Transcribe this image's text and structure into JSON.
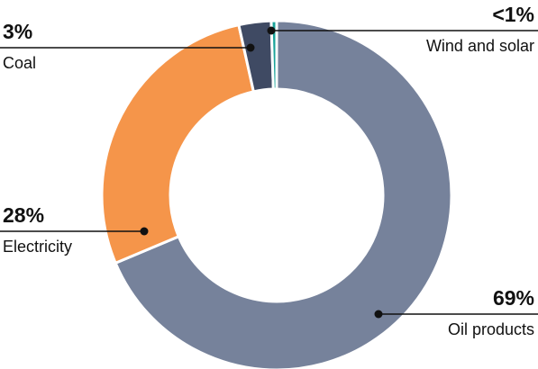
{
  "chart_data": {
    "type": "donut",
    "categories": [
      "Oil products",
      "Electricity",
      "Coal",
      "Wind and solar"
    ],
    "values": [
      69,
      28,
      3,
      0.5
    ],
    "value_labels": [
      "69%",
      "28%",
      "3%",
      "<1%"
    ],
    "colors": [
      "#76829b",
      "#f5954a",
      "#3f4a63",
      "#1aa39a"
    ]
  }
}
